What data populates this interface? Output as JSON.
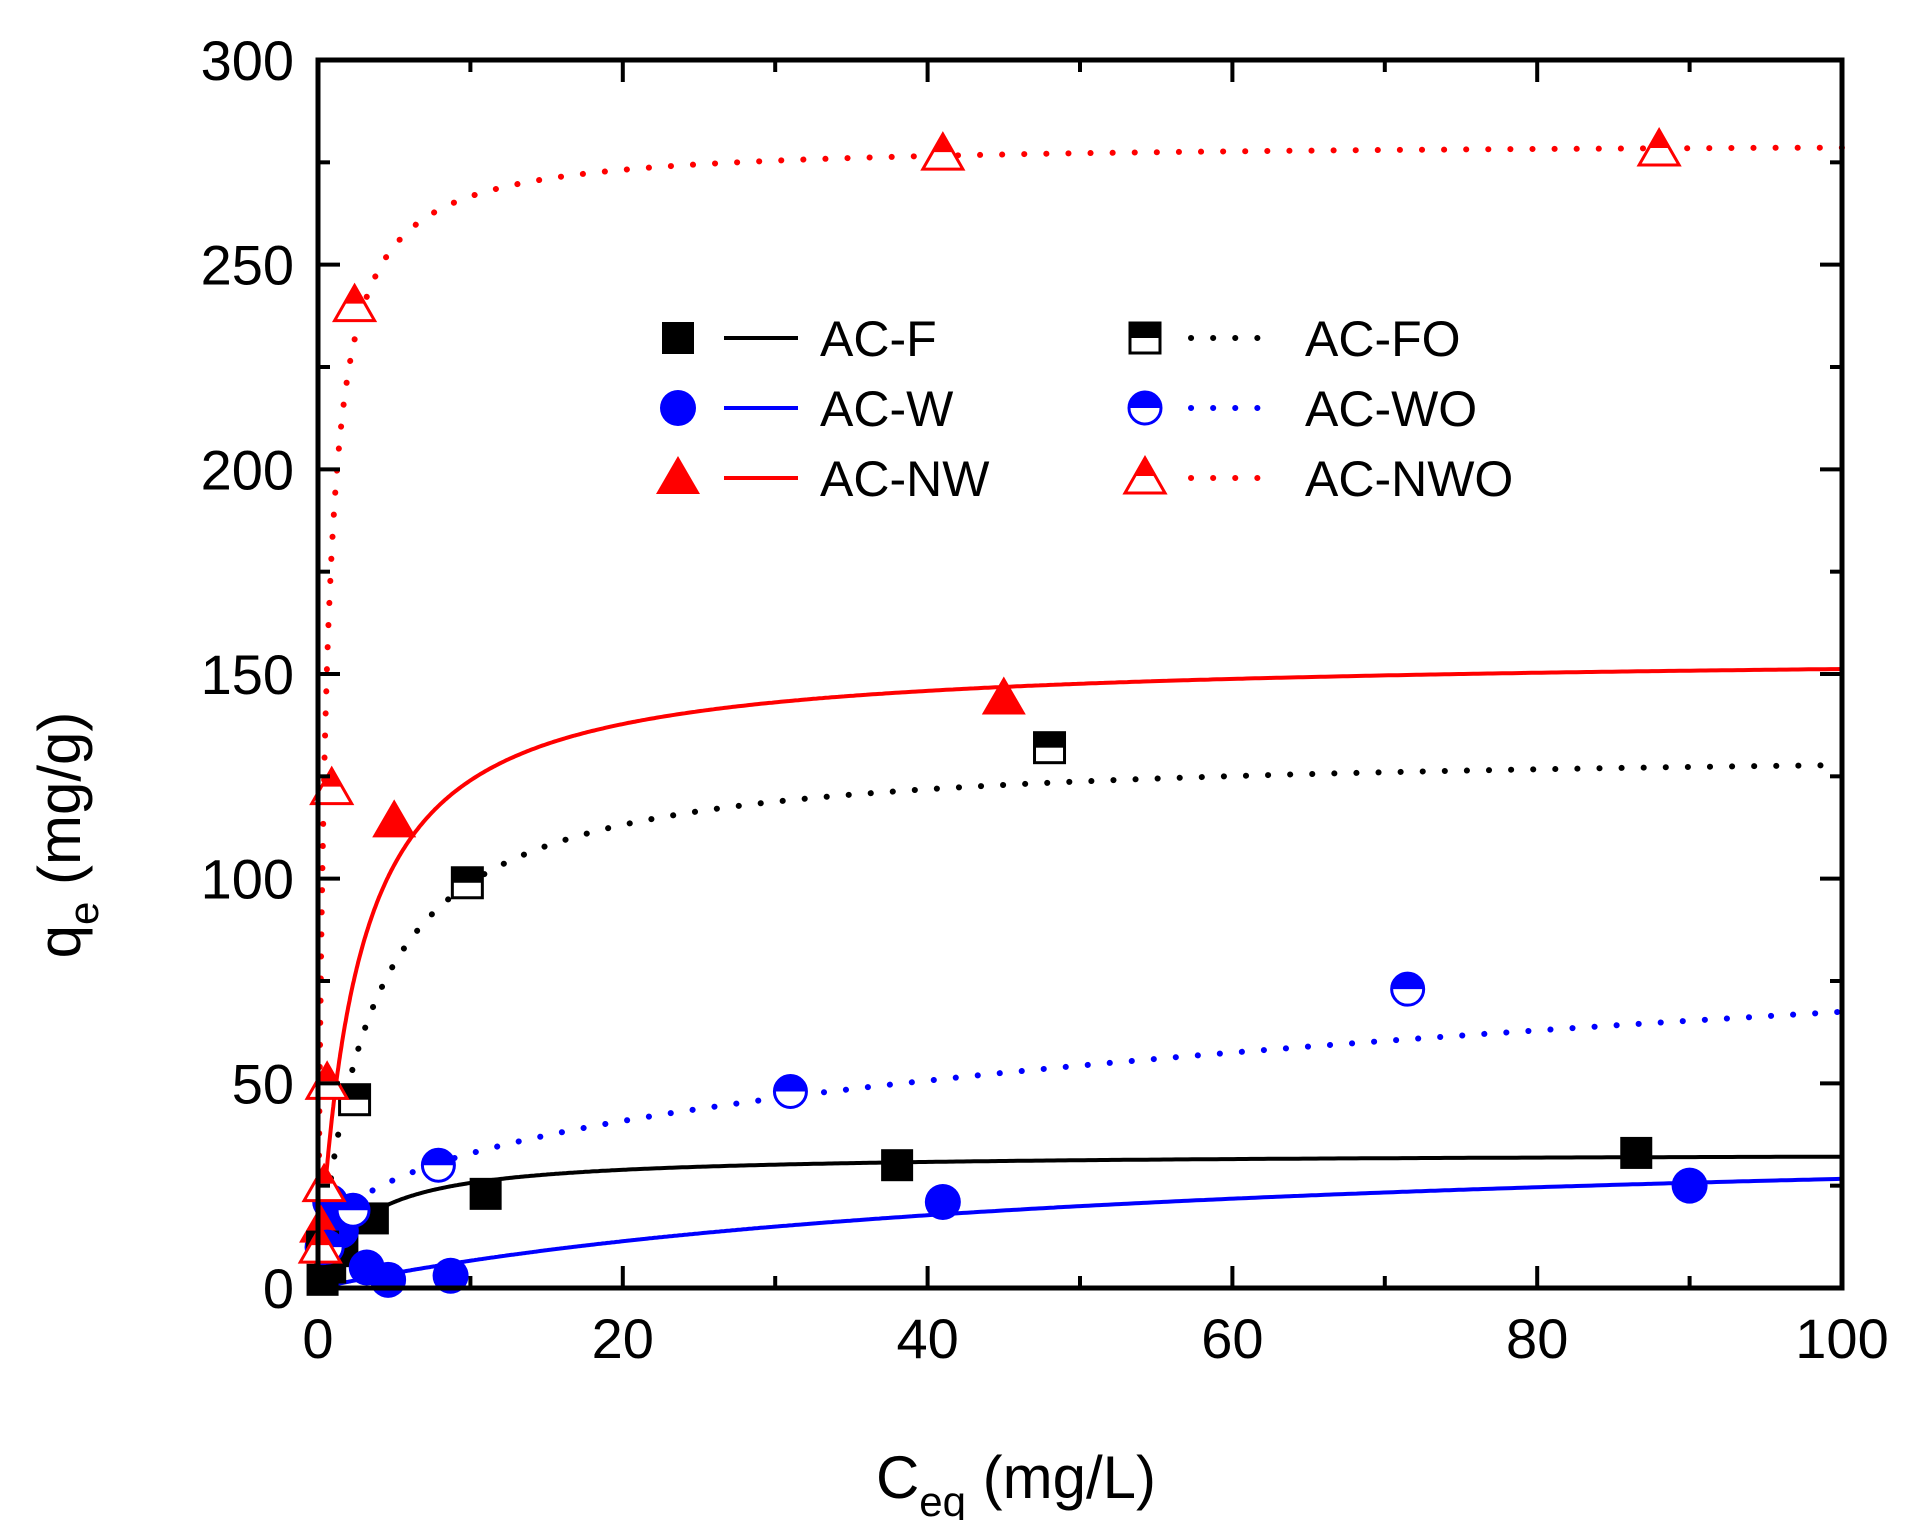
{
  "chart_data": {
    "type": "scatter",
    "title": "",
    "xlabel": {
      "main": "C",
      "sub": "eq",
      "unit": " (mg/L)"
    },
    "ylabel": {
      "main": "q",
      "sub": "e",
      "unit": " (mg/g)"
    },
    "xlim": [
      0,
      100
    ],
    "ylim": [
      0,
      300
    ],
    "x_ticks": [
      0,
      20,
      40,
      60,
      80,
      100
    ],
    "y_ticks": [
      0,
      50,
      100,
      150,
      200,
      250,
      300
    ],
    "x_tick_labels": [
      "0",
      "20",
      "40",
      "60",
      "80",
      "100"
    ],
    "y_tick_labels": [
      "0",
      "50",
      "100",
      "150",
      "200",
      "250",
      "300"
    ],
    "grid": false,
    "legend_position": "upper-center",
    "series": [
      {
        "name": "AC-F",
        "color": "#000000",
        "marker": "square-filled",
        "line": "solid",
        "points": [
          [
            0.3,
            2
          ],
          [
            0.8,
            5
          ],
          [
            1.6,
            9
          ],
          [
            3.6,
            17
          ],
          [
            11,
            23
          ],
          [
            38,
            30
          ],
          [
            86.5,
            33
          ]
        ],
        "fit": {
          "qmax": 33,
          "K": 0.35
        }
      },
      {
        "name": "AC-W",
        "color": "#0000ff",
        "marker": "circle-filled",
        "line": "solid",
        "points": [
          [
            0.3,
            10
          ],
          [
            0.8,
            21
          ],
          [
            1.5,
            14
          ],
          [
            3.2,
            5
          ],
          [
            4.6,
            2
          ],
          [
            8.7,
            3
          ],
          [
            41,
            21
          ],
          [
            90,
            25
          ]
        ],
        "fit": {
          "qmax": 40,
          "K": 0.02
        }
      },
      {
        "name": "AC-NW",
        "color": "#ff0000",
        "marker": "triangle-filled",
        "line": "solid",
        "points": [
          [
            0.2,
            15
          ],
          [
            0.4,
            25
          ],
          [
            5,
            114
          ],
          [
            45,
            144
          ]
        ],
        "fit": {
          "qmax": 155,
          "K": 0.4
        }
      },
      {
        "name": "AC-FO",
        "color": "#000000",
        "marker": "square-half",
        "line": "dotted",
        "points": [
          [
            0.3,
            10
          ],
          [
            2.4,
            46
          ],
          [
            9.8,
            99
          ],
          [
            48,
            132
          ]
        ],
        "fit": {
          "qmax": 132,
          "K": 0.3
        }
      },
      {
        "name": "AC-WO",
        "color": "#0000ff",
        "marker": "circle-half",
        "line": "dotted",
        "points": [
          [
            0.6,
            10
          ],
          [
            2.3,
            19
          ],
          [
            7.9,
            30
          ],
          [
            31,
            48
          ],
          [
            71.5,
            73
          ]
        ],
        "fit": {
          "K": 16,
          "n": 3.2
        }
      },
      {
        "name": "AC-NWO",
        "color": "#ff0000",
        "marker": "triangle-open",
        "line": "dotted",
        "points": [
          [
            0.15,
            10
          ],
          [
            0.4,
            25
          ],
          [
            0.6,
            50
          ],
          [
            0.9,
            122
          ],
          [
            2.4,
            240
          ],
          [
            41,
            277
          ],
          [
            88,
            278
          ]
        ],
        "fit": {
          "qmax": 280,
          "K": 2.0
        }
      }
    ]
  }
}
